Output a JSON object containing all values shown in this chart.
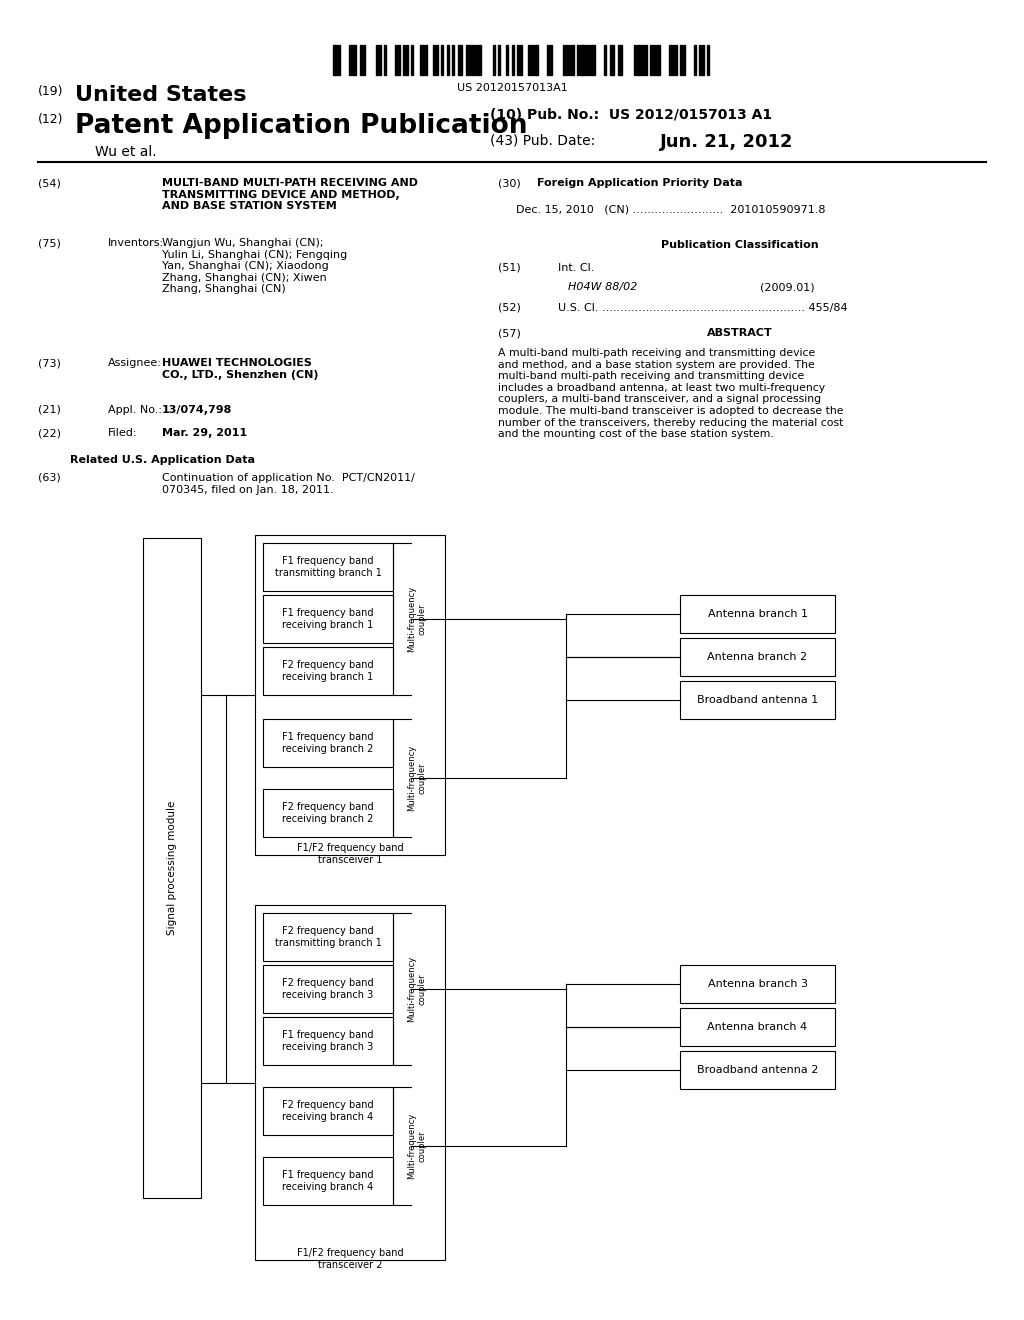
{
  "bg_color": "#ffffff",
  "barcode_text": "US 20120157013A1",
  "title_19": "(19) United States",
  "title_12": "(12) Patent Application Publication",
  "pub_no_label": "(10) Pub. No.:",
  "pub_no_value": "US 2012/0157013 A1",
  "author": "Wu et al.",
  "pub_date_label": "(43) Pub. Date:",
  "pub_date_value": "Jun. 21, 2012",
  "field54_text": "MULTI-BAND MULTI-PATH RECEIVING AND\nTRANSMITTING DEVICE AND METHOD,\nAND BASE STATION SYSTEM",
  "field75_text": "Wangjun Wu, Shanghai (CN);\nYulin Li, Shanghai (CN); Fengqing\nYan, Shanghai (CN); Xiaodong\nZhang, Shanghai (CN); Xiwen\nZhang, Shanghai (CN)",
  "field73_text": "HUAWEI TECHNOLOGIES\nCO., LTD., Shenzhen (CN)",
  "field21_text": "13/074,798",
  "field22_text": "Mar. 29, 2011",
  "field63_text": "Continuation of application No.  PCT/CN2011/\n070345, filed on Jan. 18, 2011.",
  "field30_text": "Dec. 15, 2010   (CN) .........................  201010590971.8",
  "field51_class": "H04W 88/02",
  "field51_year": "(2009.01)",
  "field52_text": "U.S. Cl. ........................................................ 455/84",
  "abstract_text": "A multi-band multi-path receiving and transmitting device\nand method, and a base station system are provided. The\nmulti-band multi-path receiving and transmitting device\nincludes a broadband antenna, at least two multi-frequency\ncouplers, a multi-band transceiver, and a signal processing\nmodule. The multi-band transceiver is adopted to decrease the\nnumber of the transceivers, thereby reducing the material cost\nand the mounting cost of the base station system."
}
